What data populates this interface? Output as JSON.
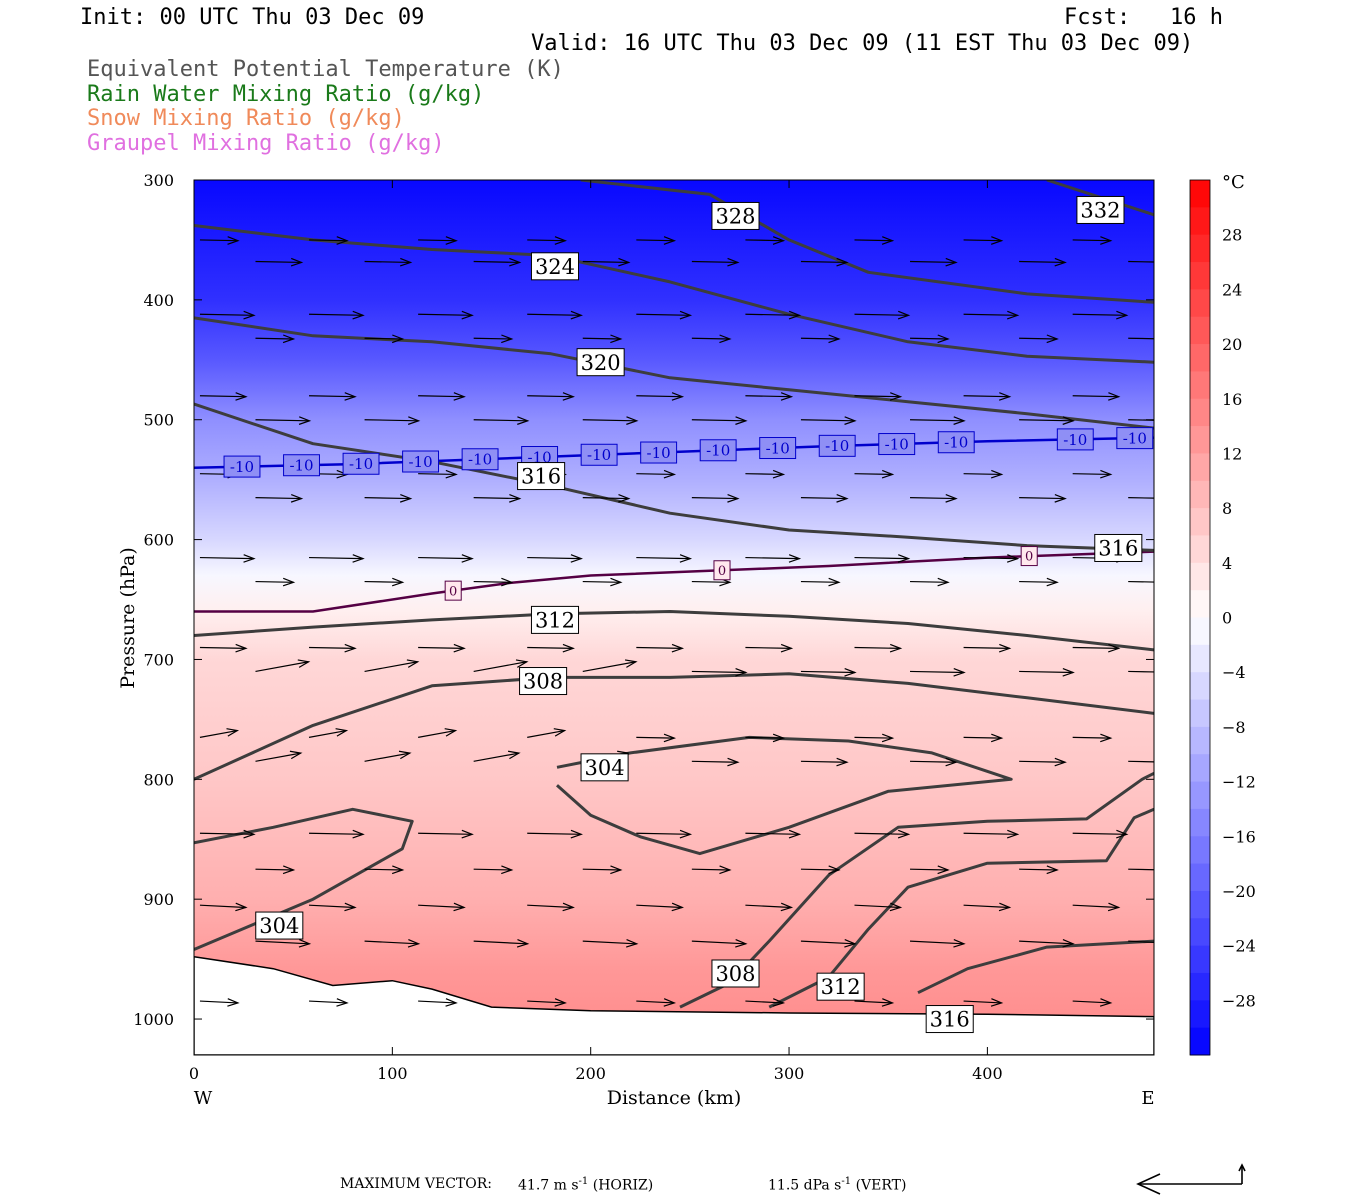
{
  "header": {
    "init": "Init: 00 UTC Thu 03 Dec 09",
    "fcst_label": "Fcst:",
    "fcst_value": "16 h",
    "valid": "Valid: 16 UTC Thu 03 Dec 09 (11 EST Thu 03 Dec 09)"
  },
  "legend": [
    {
      "text": "Equivalent Potential Temperature (K)",
      "color": "#555555"
    },
    {
      "text": "Rain Water Mixing Ratio (g/kg)",
      "color": "#1a7a1a"
    },
    {
      "text": "Snow Mixing Ratio (g/kg)",
      "color": "#f08a5a"
    },
    {
      "text": "Graupel Mixing Ratio (g/kg)",
      "color": "#e070e0"
    }
  ],
  "footer": {
    "label": "MAXIMUM VECTOR:",
    "horiz_value": "41.7 m s",
    "horiz_unit": "(HORIZ)",
    "vert_value": "11.5 dPa s",
    "vert_unit": "(VERT)",
    "exponent": "-1"
  },
  "chart_data": {
    "type": "cross-section",
    "xlabel": "Distance (km)",
    "ylabel": "Pressure (hPa)",
    "xlim": [
      0,
      484
    ],
    "ylim": [
      1030,
      300
    ],
    "x_ticks": [
      0,
      100,
      200,
      300,
      400
    ],
    "y_ticks": [
      300,
      400,
      500,
      600,
      700,
      800,
      900,
      1000
    ],
    "x_end_labels": {
      "left": "W",
      "right": "E"
    },
    "colorbar": {
      "unit": "°C",
      "ticks": [
        28,
        24,
        20,
        16,
        12,
        8,
        4,
        0,
        -4,
        -8,
        -12,
        -16,
        -20,
        -24,
        -28
      ],
      "range": [
        -32,
        32
      ],
      "cold_color": "#0000ff",
      "warm_color": "#ff0000",
      "zero_color": "#ffffff"
    },
    "temperature_profile": [
      {
        "p": 300,
        "t": -31
      },
      {
        "p": 400,
        "t": -26
      },
      {
        "p": 450,
        "t": -21
      },
      {
        "p": 500,
        "t": -14
      },
      {
        "p": 550,
        "t": -10
      },
      {
        "p": 600,
        "t": -5
      },
      {
        "p": 630,
        "t": -1
      },
      {
        "p": 660,
        "t": 2
      },
      {
        "p": 700,
        "t": 5
      },
      {
        "p": 800,
        "t": 7
      },
      {
        "p": 900,
        "t": 10
      },
      {
        "p": 960,
        "t": 13
      },
      {
        "p": 1000,
        "t": 14
      }
    ],
    "theta_e_contours": [
      {
        "label": "332",
        "points": [
          [
            430,
            300
          ],
          [
            484,
            329
          ]
        ]
      },
      {
        "label": "328",
        "points": [
          [
            195,
            300
          ],
          [
            260,
            312
          ],
          [
            300,
            350
          ],
          [
            340,
            377
          ],
          [
            420,
            395
          ],
          [
            484,
            402
          ]
        ]
      },
      {
        "label": "324",
        "points": [
          [
            0,
            338
          ],
          [
            60,
            350
          ],
          [
            120,
            358
          ],
          [
            180,
            363
          ],
          [
            240,
            385
          ],
          [
            300,
            412
          ],
          [
            360,
            435
          ],
          [
            420,
            447
          ],
          [
            484,
            452
          ]
        ]
      },
      {
        "label": "320",
        "points": [
          [
            0,
            415
          ],
          [
            60,
            430
          ],
          [
            120,
            435
          ],
          [
            180,
            445
          ],
          [
            240,
            465
          ],
          [
            300,
            475
          ],
          [
            360,
            485
          ],
          [
            420,
            495
          ],
          [
            484,
            507
          ]
        ]
      },
      {
        "label": "316",
        "points": [
          [
            0,
            487
          ],
          [
            60,
            520
          ],
          [
            120,
            535
          ],
          [
            180,
            555
          ],
          [
            240,
            578
          ],
          [
            300,
            592
          ],
          [
            360,
            598
          ],
          [
            420,
            605
          ],
          [
            484,
            609
          ]
        ]
      },
      {
        "label": "312",
        "points": [
          [
            0,
            680
          ],
          [
            60,
            673
          ],
          [
            120,
            667
          ],
          [
            180,
            662
          ],
          [
            240,
            660
          ],
          [
            300,
            664
          ],
          [
            360,
            670
          ],
          [
            420,
            680
          ],
          [
            484,
            692
          ]
        ]
      },
      {
        "label": "308",
        "points": [
          [
            0,
            800
          ],
          [
            60,
            755
          ],
          [
            120,
            722
          ],
          [
            180,
            715
          ],
          [
            240,
            715
          ],
          [
            300,
            712
          ],
          [
            360,
            720
          ],
          [
            420,
            732
          ],
          [
            484,
            745
          ]
        ]
      },
      {
        "label": "304",
        "points": [
          [
            0,
            942
          ],
          [
            60,
            900
          ],
          [
            105,
            858
          ],
          [
            110,
            835
          ],
          [
            80,
            825
          ],
          [
            40,
            840
          ],
          [
            0,
            853
          ]
        ]
      },
      {
        "label": "304",
        "points": [
          [
            183,
            790
          ],
          [
            220,
            778
          ],
          [
            280,
            765
          ],
          [
            330,
            768
          ],
          [
            372,
            778
          ],
          [
            412,
            800
          ],
          [
            350,
            810
          ],
          [
            300,
            840
          ],
          [
            255,
            862
          ],
          [
            225,
            848
          ],
          [
            200,
            830
          ],
          [
            183,
            805
          ]
        ]
      },
      {
        "label": "308",
        "points": [
          [
            245,
            990
          ],
          [
            270,
            970
          ],
          [
            290,
            935
          ],
          [
            320,
            880
          ],
          [
            355,
            840
          ],
          [
            400,
            835
          ],
          [
            450,
            833
          ],
          [
            478,
            800
          ],
          [
            484,
            795
          ]
        ]
      },
      {
        "label": "312",
        "points": [
          [
            290,
            990
          ],
          [
            320,
            965
          ],
          [
            340,
            925
          ],
          [
            360,
            890
          ],
          [
            400,
            870
          ],
          [
            460,
            868
          ],
          [
            474,
            832
          ],
          [
            484,
            825
          ]
        ]
      },
      {
        "label": "316",
        "points": [
          [
            365,
            978
          ],
          [
            390,
            958
          ],
          [
            430,
            940
          ],
          [
            484,
            935
          ]
        ]
      }
    ],
    "temperature_contours": [
      {
        "label": "-10",
        "color": "#0000cc",
        "points": [
          [
            0,
            540
          ],
          [
            80,
            537
          ],
          [
            160,
            532
          ],
          [
            240,
            527
          ],
          [
            320,
            522
          ],
          [
            400,
            518
          ],
          [
            484,
            515
          ]
        ]
      },
      {
        "label": "0",
        "color": "#550044",
        "points": [
          [
            0,
            660
          ],
          [
            60,
            660
          ],
          [
            120,
            645
          ],
          [
            160,
            636
          ],
          [
            200,
            630
          ],
          [
            260,
            626
          ],
          [
            320,
            622
          ],
          [
            400,
            615
          ],
          [
            484,
            610
          ]
        ]
      }
    ],
    "terrain": [
      [
        0,
        948
      ],
      [
        40,
        958
      ],
      [
        70,
        972
      ],
      [
        100,
        968
      ],
      [
        120,
        975
      ],
      [
        150,
        990
      ],
      [
        200,
        993
      ],
      [
        300,
        995
      ],
      [
        400,
        996
      ],
      [
        484,
        998
      ]
    ]
  }
}
